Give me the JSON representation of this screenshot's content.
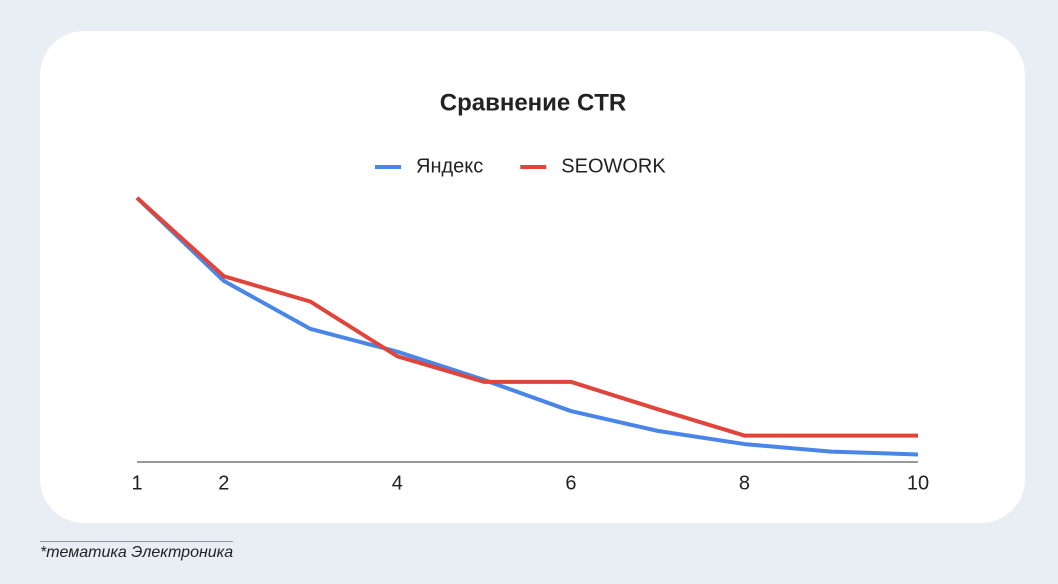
{
  "chart_data": {
    "type": "line",
    "title": "Сравнение CTR",
    "x": [
      1,
      2,
      3,
      4,
      5,
      6,
      7,
      8,
      9,
      10
    ],
    "xlim": [
      1,
      10
    ],
    "xticks": [
      1,
      2,
      4,
      6,
      8,
      10
    ],
    "ylim": [
      0,
      30
    ],
    "series": [
      {
        "name": "Яндекс",
        "color": "#4a86e8",
        "values": [
          28,
          19.2,
          14.1,
          11.7,
          8.7,
          5.4,
          3.3,
          1.9,
          1.1,
          0.8
        ]
      },
      {
        "name": "SEOWORK",
        "color": "#e0443b",
        "values": [
          28,
          19.7,
          17.0,
          11.2,
          8.5,
          8.5,
          5.6,
          2.8,
          2.8,
          2.8
        ]
      }
    ]
  },
  "footnote": "*тематика Электроника"
}
